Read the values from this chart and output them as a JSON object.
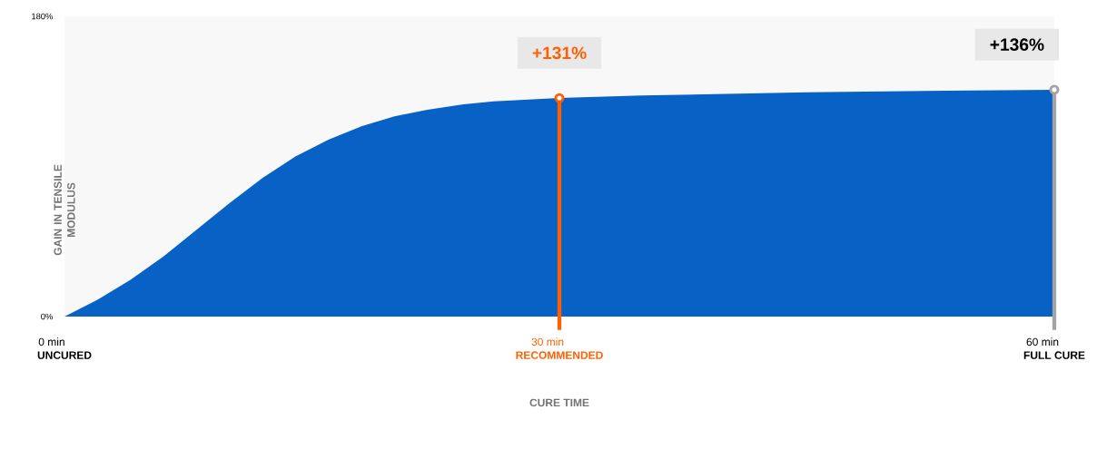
{
  "chart_data": {
    "type": "area",
    "xlabel": "CURE TIME",
    "ylabel": "GAIN IN TENSILE MODULUS",
    "x": [
      0,
      2,
      4,
      6,
      8,
      10,
      12,
      14,
      16,
      18,
      20,
      22,
      24,
      26,
      28,
      30,
      35,
      40,
      45,
      50,
      55,
      60
    ],
    "series": [
      {
        "color": "#0862c6",
        "values": [
          0,
          10,
          22,
          36,
          52,
          68,
          83,
          96,
          106,
          114,
          120,
          124,
          127,
          129,
          130,
          131,
          132.5,
          133.5,
          134.5,
          135,
          135.5,
          136
        ]
      }
    ],
    "xlim": [
      0,
      60
    ],
    "ylim": [
      0,
      180
    ],
    "xticks": [
      {
        "value": 0,
        "label": "0 min **UNCURED**"
      },
      {
        "value": 30,
        "label": "30 min **RECOMMENDED**"
      },
      {
        "value": 60,
        "label": "60 min **FULL CURE**"
      }
    ],
    "yticks": [
      {
        "value": 0,
        "label": "0%"
      },
      {
        "value": 180,
        "label": "180%"
      }
    ],
    "ref_lines": [
      {
        "axis": "x",
        "value": 30,
        "color": "#ff5f00"
      },
      {
        "axis": "x",
        "value": 60,
        "color": "#a3a3a3"
      }
    ],
    "annotations": [
      {
        "text": "+131%",
        "x": 30,
        "y": 131
      },
      {
        "text": "+136%",
        "x": 60,
        "y": 136
      }
    ]
  }
}
